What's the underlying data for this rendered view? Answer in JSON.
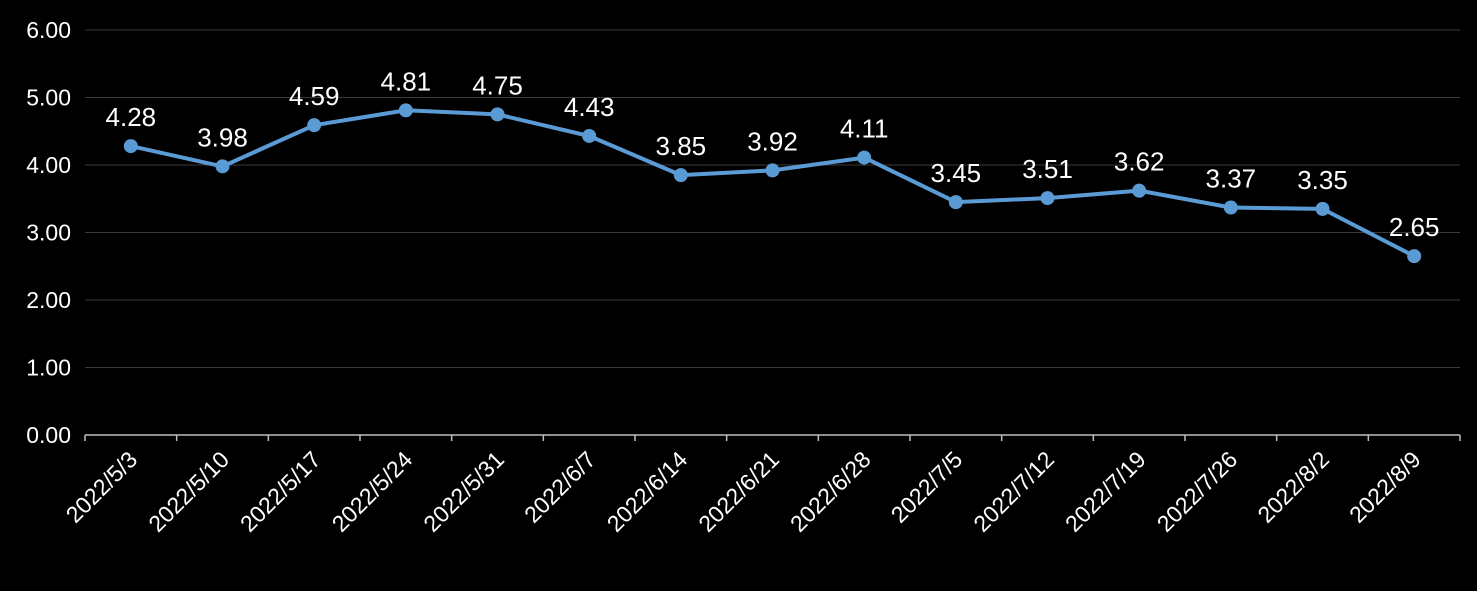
{
  "chart_data": {
    "type": "line",
    "categories": [
      "2022/5/3",
      "2022/5/10",
      "2022/5/17",
      "2022/5/24",
      "2022/5/31",
      "2022/6/7",
      "2022/6/14",
      "2022/6/21",
      "2022/6/28",
      "2022/7/5",
      "2022/7/12",
      "2022/7/19",
      "2022/7/26",
      "2022/8/2",
      "2022/8/9"
    ],
    "values": [
      4.28,
      3.98,
      4.59,
      4.81,
      4.75,
      4.43,
      3.85,
      3.92,
      4.11,
      3.45,
      3.51,
      3.62,
      3.37,
      3.35,
      2.65
    ],
    "data_labels": [
      "4.28",
      "3.98",
      "4.59",
      "4.81",
      "4.75",
      "4.43",
      "3.85",
      "3.92",
      "4.11",
      "3.45",
      "3.51",
      "3.62",
      "3.37",
      "3.35",
      "2.65"
    ],
    "title": "",
    "xlabel": "",
    "ylabel": "",
    "ylim": [
      0,
      6
    ],
    "ytick_step": 1,
    "ytick_labels": [
      "0.00",
      "1.00",
      "2.00",
      "3.00",
      "4.00",
      "5.00",
      "6.00"
    ],
    "grid": true,
    "legend": "none",
    "colors": {
      "background": "#000000",
      "line": "#5B9BD5",
      "marker": "#5B9BD5",
      "gridline": "#3a3a3a",
      "axis_line": "#bfbfbf",
      "tick_label": "#ffffff",
      "data_label": "#ffffff"
    }
  }
}
